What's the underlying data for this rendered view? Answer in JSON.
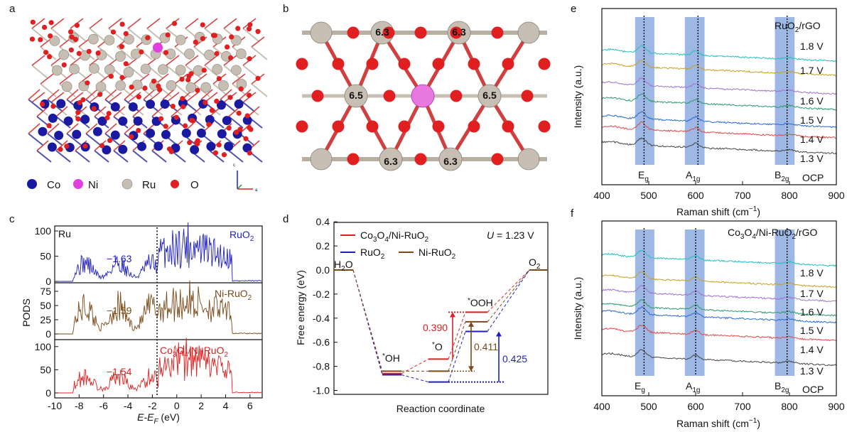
{
  "panel_labels": {
    "a": "a",
    "b": "b",
    "c": "c",
    "d": "d",
    "e": "e",
    "f": "f"
  },
  "panel_a": {
    "legend": [
      {
        "label": "Co",
        "color": "#1a1aa0"
      },
      {
        "label": "Ni",
        "color": "#e040e0"
      },
      {
        "label": "Ru",
        "color": "#c8bfb4"
      },
      {
        "label": "O",
        "color": "#e02020"
      }
    ],
    "axes_labels": [
      "c",
      "a"
    ]
  },
  "panel_b": {
    "values": [
      "6.3",
      "6.3",
      "6.5",
      "6.5",
      "6.3",
      "6.3"
    ]
  },
  "panel_c": {
    "element": "Ru",
    "ylabel": "PODS",
    "xlabel_italic": "E-E",
    "xlabel_sub": "F",
    "xlabel_unit": " (eV)",
    "xticks": [
      "-10",
      "-8",
      "-6",
      "-4",
      "-2",
      "0",
      "2",
      "4",
      "6"
    ],
    "subpanels": [
      {
        "name_main": "RuO",
        "name_sub": "2",
        "name_rest": "",
        "center": "−1.63",
        "color": "#1f1fc0",
        "yticks": [
          "0",
          "50",
          "100"
        ]
      },
      {
        "name_main": "Ni-RuO",
        "name_sub": "2",
        "name_rest": "",
        "center": "−1.59",
        "color": "#7a4a1a",
        "yticks": [
          "0",
          "25",
          "50",
          "75"
        ]
      },
      {
        "name_main": "Co",
        "name_sub": "3",
        "name_rest": "O4/Ni-RuO2",
        "center": "−1.54",
        "color": "#e02020",
        "yticks": [
          "0",
          "50",
          "100"
        ]
      }
    ]
  },
  "panel_d": {
    "ylabel": "Free energy (eV)",
    "xlabel": "Reaction coordinate",
    "yticks": [
      "0.4",
      "0.2",
      "0.0",
      "-0.2",
      "-0.4",
      "-0.6",
      "-0.8",
      "-1.0"
    ],
    "legend": [
      {
        "label": "Co3O4/Ni-RuO2",
        "color": "#e02020"
      },
      {
        "label": "RuO2",
        "color": "#1f1fc0"
      },
      {
        "label": "Ni-RuO2",
        "color": "#7a4a1a"
      }
    ],
    "potential": "U = 1.23 V",
    "species": [
      "H2O",
      "*OH",
      "*O",
      "*OOH",
      "O2"
    ],
    "barriers": [
      {
        "value": "0.390",
        "color": "#e02020"
      },
      {
        "value": "0.411",
        "color": "#7a4a1a"
      },
      {
        "value": "0.425",
        "color": "#1f1fc0"
      }
    ]
  },
  "panel_e": {
    "title": "RuO2/rGO",
    "ylabel": "Intensity (a.u.)",
    "xlabel": "Raman shift (cm−1)",
    "xticks": [
      "400",
      "500",
      "600",
      "700",
      "800",
      "900"
    ],
    "voltages": [
      "1.8 V",
      "1.7 V",
      "1.6 V",
      "1.5 V",
      "1.4 V",
      "1.3 V",
      "OCP"
    ],
    "modes": [
      "Eg",
      "A1g",
      "B2g"
    ]
  },
  "panel_f": {
    "title": "Co3O4/Ni-RuO2/rGO",
    "ylabel": "Intensity (a.u.)",
    "xlabel": "Raman shift (cm−1)",
    "xticks": [
      "400",
      "500",
      "600",
      "700",
      "800",
      "900"
    ],
    "voltages": [
      "1.8 V",
      "1.7 V",
      "1.6 V",
      "1.5 V",
      "1.4 V",
      "1.3 V",
      "OCP"
    ],
    "modes": [
      "Eg",
      "A1g",
      "B2g"
    ]
  },
  "chart_data": [
    {
      "type": "line",
      "panel": "c",
      "series": [
        {
          "name": "RuO2",
          "d_band_center": -1.63
        },
        {
          "name": "Ni-RuO2",
          "d_band_center": -1.59
        },
        {
          "name": "Co3O4/Ni-RuO2",
          "d_band_center": -1.54
        }
      ],
      "xlim": [
        -10,
        7
      ],
      "xlabel": "E-EF (eV)",
      "ylabel": "PODS"
    },
    {
      "type": "line",
      "panel": "d",
      "categories": [
        "H2O",
        "*OH",
        "*O",
        "*OOH",
        "O2"
      ],
      "series": [
        {
          "name": "Co3O4/Ni-RuO2",
          "values": [
            0.0,
            -0.86,
            -0.74,
            -0.35,
            0.0
          ]
        },
        {
          "name": "RuO2",
          "values": [
            0.0,
            -0.87,
            -0.93,
            -0.51,
            0.0
          ]
        },
        {
          "name": "Ni-RuO2",
          "values": [
            0.0,
            -0.84,
            -0.84,
            -0.43,
            0.0
          ]
        }
      ],
      "ylim": [
        -1.1,
        0.4
      ],
      "xlabel": "Reaction coordinate",
      "ylabel": "Free energy (eV)"
    },
    {
      "type": "line",
      "panel": "e",
      "series_names": [
        "OCP",
        "1.3 V",
        "1.4 V",
        "1.5 V",
        "1.6 V",
        "1.7 V",
        "1.8 V"
      ],
      "xlim": [
        400,
        900
      ],
      "peaks": [
        490,
        605,
        795
      ],
      "xlabel": "Raman shift (cm−1)",
      "ylabel": "Intensity (a.u.)"
    },
    {
      "type": "line",
      "panel": "f",
      "series_names": [
        "OCP",
        "1.3 V",
        "1.4 V",
        "1.5 V",
        "1.6 V",
        "1.7 V",
        "1.8 V"
      ],
      "xlim": [
        400,
        900
      ],
      "peaks": [
        490,
        600,
        795
      ],
      "xlabel": "Raman shift (cm−1)",
      "ylabel": "Intensity (a.u.)"
    }
  ]
}
